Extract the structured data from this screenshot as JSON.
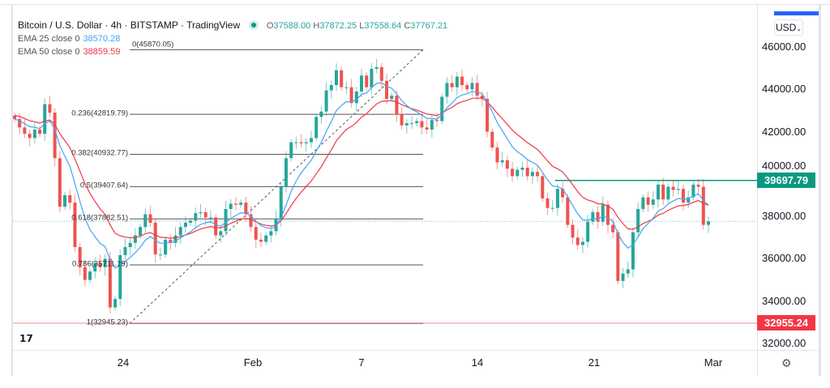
{
  "header": {
    "symbol": "Bitcoin / U.S. Dollar",
    "interval": "4h",
    "exchange": "BITSTAMP",
    "source": "TradingView",
    "separator": " · ",
    "ohlc": {
      "o_label": "O",
      "o": "37588.00",
      "h_label": "H",
      "h": "37872.25",
      "l_label": "L",
      "l": "37558.64",
      "c_label": "C",
      "c": "37767.21"
    }
  },
  "indicators": [
    {
      "label": "EMA 25 close 0",
      "value": "38570.28",
      "color": "#42a5f5"
    },
    {
      "label": "EMA 50 close 0",
      "value": "38859.59",
      "color": "#f23645"
    }
  ],
  "currency": "USD",
  "chart_data": {
    "type": "candlestick",
    "price_ticks": [
      "46000.00",
      "44000.00",
      "42000.00",
      "40000.00",
      "38000.00",
      "36000.00",
      "34000.00",
      "32000.00"
    ],
    "ylim": [
      31850,
      46300
    ],
    "time_ticks": [
      "24",
      "Feb",
      "7",
      "14",
      "21",
      "Mar"
    ],
    "closes": [
      42600,
      42200,
      41900,
      41700,
      42100,
      41900,
      43300,
      42900,
      40750,
      38460,
      39000,
      38650,
      36550,
      35600,
      35000,
      35400,
      35800,
      35600,
      36000,
      33700,
      34100,
      36170,
      36550,
      36750,
      37100,
      37500,
      38100,
      37700,
      36200,
      36200,
      36900,
      36750,
      37100,
      37500,
      37700,
      37800,
      38150,
      38200,
      37950,
      37950,
      37100,
      37300,
      38350,
      38600,
      38550,
      38650,
      38100,
      37500,
      36900,
      36800,
      37100,
      37300,
      37900,
      39400,
      40750,
      41500,
      41500,
      41450,
      41500,
      41700,
      42700,
      42950,
      43950,
      44200,
      44900,
      44100,
      44100,
      43350,
      43900,
      44650,
      44100,
      44970,
      45050,
      44400,
      43550,
      43700,
      42800,
      42300,
      42400,
      42400,
      42500,
      42200,
      42100,
      42550,
      42500,
      43650,
      44300,
      44100,
      44600,
      44200,
      44000,
      44300,
      43700,
      43550,
      42000,
      41250,
      40550,
      40650,
      40250,
      39900,
      40200,
      40300,
      39900,
      40100,
      39900,
      38850,
      38400,
      38400,
      39300,
      38900,
      37600,
      37000,
      36650,
      36800,
      37750,
      38200,
      37750,
      38550,
      37600,
      37250,
      34950,
      35300,
      35500,
      37250,
      38350,
      38900,
      38550,
      38800,
      39500,
      38800,
      39400,
      39250,
      39300,
      38650,
      38900,
      39500,
      39400,
      37600,
      37767
    ],
    "fibonacci": [
      {
        "ratio": "0",
        "price": 45870.05
      },
      {
        "ratio": "0.236",
        "price": 42819.79
      },
      {
        "ratio": "0.382",
        "price": 40932.77
      },
      {
        "ratio": "0.5",
        "price": 39407.64
      },
      {
        "ratio": "0.618",
        "price": 37882.51
      },
      {
        "ratio": "0.786",
        "price": 35711.19
      },
      {
        "ratio": "1",
        "price": 32945.23
      }
    ],
    "horizontal_lines": [
      {
        "price": "39697.79",
        "color": "#089981"
      },
      {
        "price": "32955.24",
        "color": "#f23645"
      }
    ],
    "last_price": 37767.21,
    "colors": {
      "up": "#26a69a",
      "down": "#ef5350",
      "ema25": "#42a5f5",
      "ema50": "#f23645"
    }
  },
  "footer": {
    "logo": "TV",
    "settings_icon": "gear-icon"
  }
}
